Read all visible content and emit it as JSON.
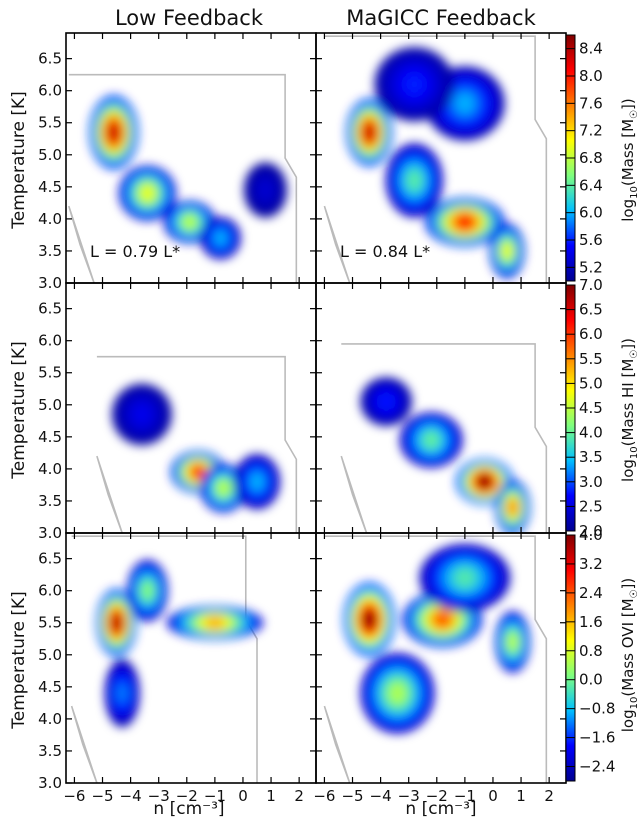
{
  "figure": {
    "column_titles": [
      "Low Feedback",
      "MaGICC Feedback"
    ],
    "xlabel": "n [cm⁻³]",
    "ylabel": "Temperature [K]",
    "xlim": [
      -6.3,
      2.6
    ],
    "ylim": [
      3.0,
      6.9
    ],
    "x_ticks": [
      "−6",
      "−5",
      "−4",
      "−3",
      "−2",
      "−1",
      "0",
      "1",
      "2"
    ],
    "y_ticks": [
      "3.0",
      "3.5",
      "4.0",
      "4.5",
      "5.0",
      "5.5",
      "6.0",
      "6.5"
    ]
  },
  "chart_data": [
    {
      "type": "heatmap",
      "row": 0,
      "col": 0,
      "title": "Low Feedback",
      "ylabel": "Temperature [K]",
      "annotation": "L = 0.79 L*",
      "quantity": "log10(Mass [M☉])",
      "blobs": [
        {
          "x": -4.6,
          "y": 5.35,
          "sx": 0.75,
          "sy": 0.5,
          "value": 8.3
        },
        {
          "x": -3.4,
          "y": 4.4,
          "sx": 0.9,
          "sy": 0.35,
          "value": 7.0
        },
        {
          "x": -1.9,
          "y": 3.95,
          "sx": 0.8,
          "sy": 0.25,
          "value": 6.8
        },
        {
          "x": -0.8,
          "y": 3.7,
          "sx": 0.6,
          "sy": 0.25,
          "value": 6.0
        },
        {
          "x": 0.8,
          "y": 4.45,
          "sx": 0.65,
          "sy": 0.35,
          "value": 5.3
        }
      ]
    },
    {
      "type": "heatmap",
      "row": 0,
      "col": 1,
      "title": "MaGICC Feedback",
      "annotation": "L = 0.84 L*",
      "quantity": "log10(Mass [M☉])",
      "blobs": [
        {
          "x": -4.4,
          "y": 5.35,
          "sx": 0.7,
          "sy": 0.45,
          "value": 8.3
        },
        {
          "x": -1.0,
          "y": 3.95,
          "sx": 1.3,
          "sy": 0.3,
          "value": 8.0
        },
        {
          "x": -1.0,
          "y": 5.8,
          "sx": 1.3,
          "sy": 0.5,
          "value": 6.0
        },
        {
          "x": -2.8,
          "y": 6.1,
          "sx": 1.3,
          "sy": 0.5,
          "value": 5.6
        },
        {
          "x": -2.8,
          "y": 4.6,
          "sx": 0.9,
          "sy": 0.5,
          "value": 6.4
        },
        {
          "x": 0.5,
          "y": 3.5,
          "sx": 0.5,
          "sy": 0.35,
          "value": 7.0
        }
      ]
    },
    {
      "type": "heatmap",
      "row": 1,
      "col": 0,
      "ylabel": "Temperature [K]",
      "quantity": "log10(Mass HI [M☉])",
      "blobs": [
        {
          "x": -1.6,
          "y": 3.95,
          "sx": 0.85,
          "sy": 0.25,
          "value": 6.0
        },
        {
          "x": -3.6,
          "y": 4.85,
          "sx": 0.95,
          "sy": 0.4,
          "value": 2.6
        },
        {
          "x": -0.7,
          "y": 3.7,
          "sx": 0.7,
          "sy": 0.3,
          "value": 4.5
        },
        {
          "x": 0.5,
          "y": 3.8,
          "sx": 0.7,
          "sy": 0.35,
          "value": 3.4
        }
      ]
    },
    {
      "type": "heatmap",
      "row": 1,
      "col": 1,
      "quantity": "log10(Mass HI [M☉])",
      "blobs": [
        {
          "x": -0.3,
          "y": 3.8,
          "sx": 0.9,
          "sy": 0.28,
          "value": 7.0
        },
        {
          "x": -2.2,
          "y": 4.45,
          "sx": 1.0,
          "sy": 0.35,
          "value": 4.0
        },
        {
          "x": -3.8,
          "y": 5.05,
          "sx": 0.8,
          "sy": 0.3,
          "value": 2.8
        },
        {
          "x": 0.7,
          "y": 3.4,
          "sx": 0.5,
          "sy": 0.35,
          "value": 5.5
        }
      ]
    },
    {
      "type": "heatmap",
      "row": 2,
      "col": 0,
      "ylabel": "Temperature [K]",
      "xlabel": "n [cm⁻³]",
      "quantity": "log10(Mass OVI [M☉])",
      "blobs": [
        {
          "x": -4.5,
          "y": 5.5,
          "sx": 0.6,
          "sy": 0.45,
          "value": 3.6
        },
        {
          "x": -4.3,
          "y": 4.4,
          "sx": 0.5,
          "sy": 0.45,
          "value": -1.2
        },
        {
          "x": -1.0,
          "y": 5.5,
          "sx": 1.6,
          "sy": 0.18,
          "value": 1.7
        },
        {
          "x": -3.4,
          "y": 6.0,
          "sx": 0.6,
          "sy": 0.4,
          "value": 0.2
        }
      ]
    },
    {
      "type": "heatmap",
      "row": 2,
      "col": 1,
      "xlabel": "n [cm⁻³]",
      "quantity": "log10(Mass OVI [M☉])",
      "blobs": [
        {
          "x": -4.4,
          "y": 5.55,
          "sx": 0.8,
          "sy": 0.5,
          "value": 4.0
        },
        {
          "x": -1.8,
          "y": 5.55,
          "sx": 1.3,
          "sy": 0.35,
          "value": 2.4
        },
        {
          "x": -3.4,
          "y": 4.4,
          "sx": 1.2,
          "sy": 0.55,
          "value": 0.5
        },
        {
          "x": -1.0,
          "y": 6.2,
          "sx": 1.5,
          "sy": 0.45,
          "value": -0.2
        },
        {
          "x": 0.7,
          "y": 5.2,
          "sx": 0.5,
          "sy": 0.4,
          "value": 0.6
        }
      ]
    }
  ],
  "colorbars": [
    {
      "row": 0,
      "label": "log10(Mass [M☉])",
      "range": [
        5.0,
        8.6
      ],
      "ticks": [
        "5.2",
        "5.6",
        "6.0",
        "6.4",
        "6.8",
        "7.2",
        "7.6",
        "8.0",
        "8.4"
      ],
      "tick_values": [
        5.2,
        5.6,
        6.0,
        6.4,
        6.8,
        7.2,
        7.6,
        8.0,
        8.4
      ]
    },
    {
      "row": 1,
      "label": "log10(Mass HI [M☉])",
      "range": [
        2.0,
        7.0
      ],
      "ticks": [
        "2.0",
        "2.5",
        "3.0",
        "3.5",
        "4.0",
        "4.5",
        "5.0",
        "5.5",
        "6.0",
        "6.5",
        "7.0"
      ],
      "tick_values": [
        2.0,
        2.5,
        3.0,
        3.5,
        4.0,
        4.5,
        5.0,
        5.5,
        6.0,
        6.5,
        7.0
      ]
    },
    {
      "row": 2,
      "label": "log10(Mass OVI [M☉])",
      "range": [
        -2.8,
        4.0
      ],
      "ticks": [
        "−2.4",
        "−1.6",
        "−0.8",
        "0.0",
        "0.8",
        "1.6",
        "2.4",
        "3.2",
        "4.0"
      ],
      "tick_values": [
        -2.4,
        -1.6,
        -0.8,
        0.0,
        0.8,
        1.6,
        2.4,
        3.2,
        4.0
      ]
    }
  ],
  "colors": {
    "colormap": [
      "#00008f",
      "#0000ff",
      "#00bfff",
      "#7fff7f",
      "#ffff00",
      "#ff8000",
      "#ff0000",
      "#800000"
    ],
    "outline": "#bbbbbb",
    "axes": "#000000"
  }
}
